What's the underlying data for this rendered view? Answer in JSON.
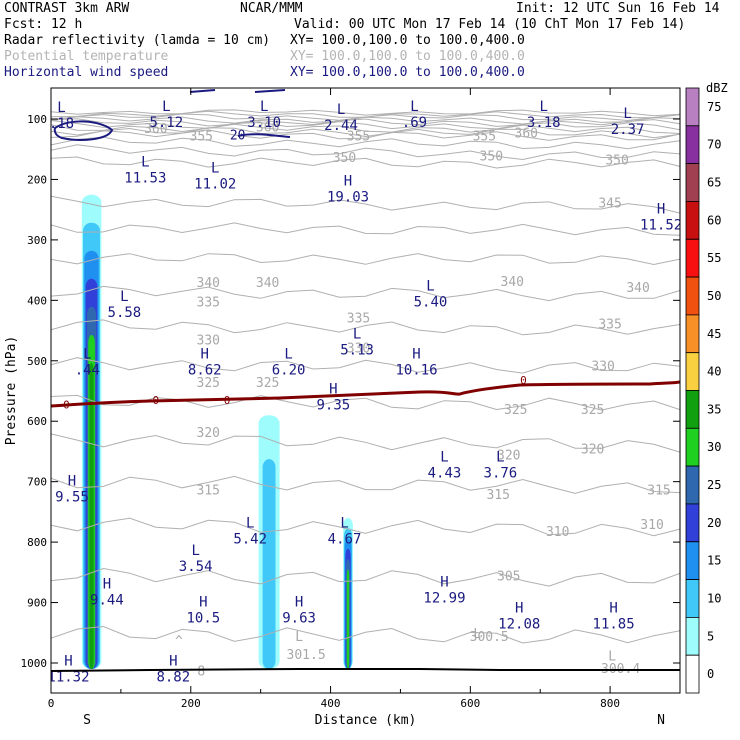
{
  "header": {
    "title": "CONTRAST  3km ARW",
    "org": "NCAR/MMM",
    "init": "Init: 12 UTC Sun 16 Feb 14",
    "fcst": "Fcst:   12 h",
    "valid": "Valid: 00 UTC Mon 17 Feb 14 (10 ChT Mon 17 Feb 14)",
    "field1": "Radar reflectivity (lamda = 10 cm)",
    "xy1": "XY= 100.0,100.0 to 100.0,400.0",
    "field2": "Potential temperature",
    "xy2": "XY= 100.0,100.0 to 100.0,400.0",
    "field3": "Horizontal wind speed",
    "xy3": "XY= 100.0,100.0 to 100.0,400.0"
  },
  "chart_data": {
    "type": "cross-section",
    "xlabel": "Distance (km)",
    "ylabel": "Pressure (hPa)",
    "xlim": [
      0,
      900
    ],
    "ylim": [
      1050,
      70
    ],
    "x_ticks": [
      0,
      200,
      400,
      600,
      800
    ],
    "y_ticks": [
      100,
      200,
      300,
      400,
      500,
      600,
      700,
      800,
      900,
      1000
    ],
    "x_end_labels": {
      "left": "S",
      "right": "N"
    },
    "colorbar": {
      "unit": "dBZ",
      "levels": [
        0,
        5,
        10,
        15,
        20,
        25,
        30,
        35,
        40,
        45,
        50,
        55,
        60,
        65,
        70,
        75
      ],
      "colors": [
        "#ffffff",
        "#9efcfc",
        "#40c8f8",
        "#2090f0",
        "#3040d8",
        "#3068b0",
        "#20d020",
        "#10a010",
        "#f8d040",
        "#f89028",
        "#f05010",
        "#f81010",
        "#c81010",
        "#a04050",
        "#8830a0",
        "#b880c0"
      ]
    },
    "reflectivity_columns": [
      {
        "x_center": 58,
        "width_km": 28,
        "top_hPa": 225,
        "base_hPa": 1010,
        "peak_dBZ": 35
      },
      {
        "x_center": 312,
        "width_km": 30,
        "top_hPa": 590,
        "base_hPa": 1010,
        "peak_dBZ": 10
      },
      {
        "x_center": 425,
        "width_km": 14,
        "top_hPa": 760,
        "base_hPa": 1010,
        "peak_dBZ": 30
      }
    ],
    "theta_contour_labels": [
      {
        "text": "360",
        "x": 150,
        "p": 115
      },
      {
        "text": "355",
        "x": 215,
        "p": 127
      },
      {
        "text": "360",
        "x": 310,
        "p": 112
      },
      {
        "text": "355",
        "x": 440,
        "p": 127
      },
      {
        "text": "355",
        "x": 620,
        "p": 127
      },
      {
        "text": "360",
        "x": 680,
        "p": 122
      },
      {
        "text": "350",
        "x": 420,
        "p": 163
      },
      {
        "text": "350",
        "x": 630,
        "p": 160
      },
      {
        "text": "350",
        "x": 810,
        "p": 167
      },
      {
        "text": "345",
        "x": 800,
        "p": 238
      },
      {
        "text": "340",
        "x": 225,
        "p": 370
      },
      {
        "text": "340",
        "x": 310,
        "p": 370
      },
      {
        "text": "340",
        "x": 660,
        "p": 368
      },
      {
        "text": "340",
        "x": 840,
        "p": 378
      },
      {
        "text": "335",
        "x": 225,
        "p": 402
      },
      {
        "text": "335",
        "x": 440,
        "p": 428
      },
      {
        "text": "335",
        "x": 800,
        "p": 438
      },
      {
        "text": "330",
        "x": 225,
        "p": 465
      },
      {
        "text": "330",
        "x": 440,
        "p": 478
      },
      {
        "text": "330",
        "x": 790,
        "p": 508
      },
      {
        "text": "325",
        "x": 225,
        "p": 535
      },
      {
        "text": "325",
        "x": 310,
        "p": 535
      },
      {
        "text": "325",
        "x": 665,
        "p": 580
      },
      {
        "text": "325",
        "x": 775,
        "p": 580
      },
      {
        "text": "320",
        "x": 225,
        "p": 618
      },
      {
        "text": "320",
        "x": 655,
        "p": 655
      },
      {
        "text": "320",
        "x": 775,
        "p": 645
      },
      {
        "text": "315",
        "x": 225,
        "p": 713
      },
      {
        "text": "315",
        "x": 640,
        "p": 720
      },
      {
        "text": "315",
        "x": 870,
        "p": 713
      },
      {
        "text": "310",
        "x": 725,
        "p": 782
      },
      {
        "text": "310",
        "x": 860,
        "p": 770
      },
      {
        "text": "305",
        "x": 655,
        "p": 855
      },
      {
        "text": "301.5",
        "x": 365,
        "p": 985
      },
      {
        "text": "300.5",
        "x": 627,
        "p": 955
      },
      {
        "text": "300.4",
        "x": 815,
        "p": 1008
      },
      {
        "text": "8",
        "x": 215,
        "p": 1012
      },
      {
        "text": "L",
        "x": 610,
        "p": 950
      },
      {
        "text": "L",
        "x": 355,
        "p": 955
      },
      {
        "text": "L",
        "x": 803,
        "p": 988
      },
      {
        "text": "^",
        "x": 183,
        "p": 962
      }
    ],
    "wind_extrema": [
      {
        "type": "L",
        "value": ".18",
        "x": 15,
        "p": 100
      },
      {
        "type": "L",
        "value": "5.12",
        "x": 165,
        "p": 98
      },
      {
        "type": "L",
        "value": "3.10",
        "x": 305,
        "p": 98
      },
      {
        "type": "L",
        "value": "2.44",
        "x": 415,
        "p": 103
      },
      {
        "type": "L",
        "value": ".69",
        "x": 520,
        "p": 98
      },
      {
        "type": "L",
        "value": "3.18",
        "x": 705,
        "p": 98
      },
      {
        "type": "L",
        "value": "2.37",
        "x": 825,
        "p": 110
      },
      {
        "type": "L",
        "value": "11.53",
        "x": 135,
        "p": 190
      },
      {
        "type": "L",
        "value": "11.02",
        "x": 235,
        "p": 200
      },
      {
        "type": "H",
        "value": "19.03",
        "x": 425,
        "p": 222
      },
      {
        "type": "H",
        "value": "11.52",
        "x": 873,
        "p": 268
      },
      {
        "type": "L",
        "value": "5.58",
        "x": 105,
        "p": 413
      },
      {
        "type": "L",
        "value": "5.40",
        "x": 543,
        "p": 395
      },
      {
        "type": "L",
        "value": "5.13",
        "x": 438,
        "p": 475
      },
      {
        "type": "H",
        "value": "8.62",
        "x": 220,
        "p": 508
      },
      {
        "type": "L",
        "value": "6.20",
        "x": 340,
        "p": 508
      },
      {
        "type": "H",
        "value": "10.16",
        "x": 523,
        "p": 508
      },
      {
        "type": "L",
        "value": ".44",
        "x": 52,
        "p": 508
      },
      {
        "type": "H",
        "value": "9.35",
        "x": 404,
        "p": 566
      },
      {
        "type": "L",
        "value": "4.43",
        "x": 563,
        "p": 678
      },
      {
        "type": "L",
        "value": "3.76",
        "x": 643,
        "p": 678
      },
      {
        "type": "H",
        "value": "9.55",
        "x": 30,
        "p": 718
      },
      {
        "type": "L",
        "value": "5.42",
        "x": 285,
        "p": 787
      },
      {
        "type": "L",
        "value": "4.67",
        "x": 420,
        "p": 787
      },
      {
        "type": "L",
        "value": "3.54",
        "x": 207,
        "p": 833
      },
      {
        "type": "H",
        "value": "9.44",
        "x": 80,
        "p": 888
      },
      {
        "type": "H",
        "value": "12.99",
        "x": 563,
        "p": 885
      },
      {
        "type": "H",
        "value": "10.5",
        "x": 218,
        "p": 918
      },
      {
        "type": "H",
        "value": "9.63",
        "x": 355,
        "p": 918
      },
      {
        "type": "H",
        "value": "12.08",
        "x": 670,
        "p": 928
      },
      {
        "type": "H",
        "value": "11.85",
        "x": 805,
        "p": 928
      },
      {
        "type": "H",
        "value": "11.32",
        "x": 25,
        "p": 1016
      },
      {
        "type": "H",
        "value": "8.82",
        "x": 175,
        "p": 1016
      }
    ],
    "zero_line": {
      "label": "0",
      "label_positions": [
        {
          "x": 22,
          "p": 572
        },
        {
          "x": 150,
          "p": 565
        },
        {
          "x": 252,
          "p": 565
        },
        {
          "x": 676,
          "p": 532
        }
      ],
      "color": "#800000"
    },
    "wind_20_label": {
      "text": "20",
      "x": 270,
      "p": 126
    }
  }
}
